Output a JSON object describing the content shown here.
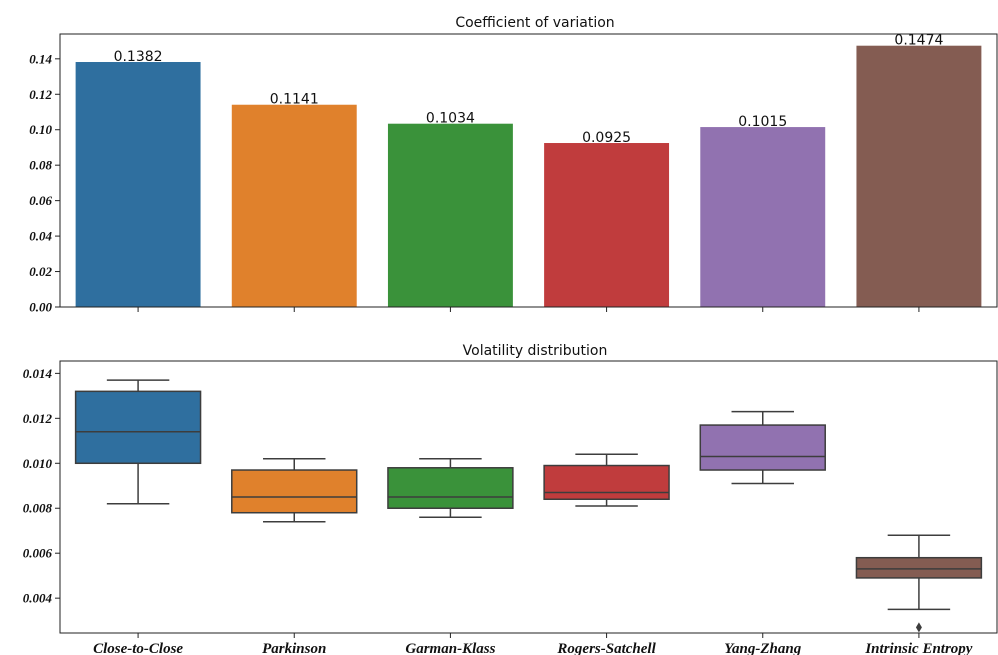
{
  "chart_data": [
    {
      "type": "bar",
      "title": "Coefficient of variation",
      "categories": [
        "Close-to-Close",
        "Parkinson",
        "Garman-Klass",
        "Rogers-Satchell",
        "Yang-Zhang",
        "Intrinsic Entropy"
      ],
      "values": [
        0.1382,
        0.1141,
        0.1034,
        0.0925,
        0.1015,
        0.1474
      ],
      "value_labels": [
        "0.1382",
        "0.1141",
        "0.1034",
        "0.0925",
        "0.1015",
        "0.1474"
      ],
      "colors": [
        "#2f6f9f",
        "#e0812c",
        "#3a923a",
        "#c03c3d",
        "#9172b0",
        "#845c52"
      ],
      "yticks": [
        "0.00",
        "0.02",
        "0.04",
        "0.06",
        "0.08",
        "0.10",
        "0.12",
        "0.14"
      ],
      "ytick_values": [
        0,
        0.02,
        0.04,
        0.06,
        0.08,
        0.1,
        0.12,
        0.14
      ],
      "ylim": [
        0,
        0.154
      ],
      "grid": false
    },
    {
      "type": "box",
      "title": "Volatility distribution",
      "categories": [
        "Close-to-Close",
        "Parkinson",
        "Garman-Klass",
        "Rogers-Satchell",
        "Yang-Zhang",
        "Intrinsic Entropy"
      ],
      "xticks": [
        "Close-to-Close",
        "Parkinson",
        "Garman-Klass",
        "Rogers-Satchell",
        "Yang-Zhang",
        "Intrinsic Entropy"
      ],
      "boxes": [
        {
          "whisker_low": 0.0082,
          "q1": 0.01,
          "median": 0.0114,
          "q3": 0.0132,
          "whisker_high": 0.0137,
          "outliers": []
        },
        {
          "whisker_low": 0.0074,
          "q1": 0.0078,
          "median": 0.0085,
          "q3": 0.0097,
          "whisker_high": 0.0102,
          "outliers": []
        },
        {
          "whisker_low": 0.0076,
          "q1": 0.008,
          "median": 0.0085,
          "q3": 0.0098,
          "whisker_high": 0.0102,
          "outliers": []
        },
        {
          "whisker_low": 0.0081,
          "q1": 0.0084,
          "median": 0.0087,
          "q3": 0.0099,
          "whisker_high": 0.0104,
          "outliers": []
        },
        {
          "whisker_low": 0.0091,
          "q1": 0.0097,
          "median": 0.0103,
          "q3": 0.0117,
          "whisker_high": 0.0123,
          "outliers": []
        },
        {
          "whisker_low": 0.0035,
          "q1": 0.0049,
          "median": 0.0053,
          "q3": 0.0058,
          "whisker_high": 0.0068,
          "outliers": [
            0.0027
          ]
        }
      ],
      "colors": [
        "#2f6f9f",
        "#e0812c",
        "#3a923a",
        "#c03c3d",
        "#9172b0",
        "#845c52"
      ],
      "yticks": [
        "0.004",
        "0.006",
        "0.008",
        "0.010",
        "0.012",
        "0.014"
      ],
      "ytick_values": [
        0.004,
        0.006,
        0.008,
        0.01,
        0.012,
        0.014
      ],
      "ylim": [
        0.00245,
        0.01455
      ],
      "grid": false
    }
  ]
}
